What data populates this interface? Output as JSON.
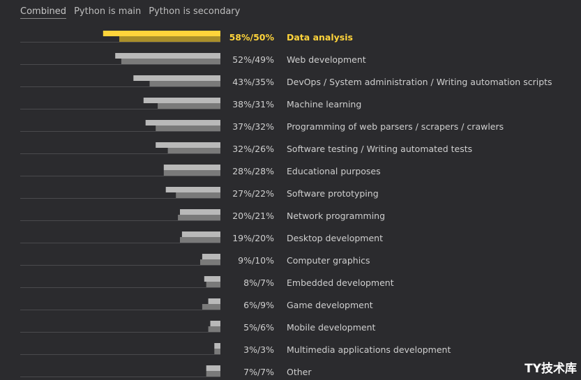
{
  "tabs": [
    {
      "label": "Combined",
      "active": true
    },
    {
      "label": "Python is main",
      "active": false
    },
    {
      "label": "Python is secondary",
      "active": false
    }
  ],
  "colors": {
    "background": "#2b2b2e",
    "bar_main": "#b9b9b9",
    "bar_secondary": "#7a7a7a",
    "highlight_main": "#ffd43b",
    "highlight_secondary": "#a98e2a",
    "baseline": "#4a4a4d"
  },
  "watermark": "TY技术库",
  "chart_data": {
    "type": "bar",
    "orientation": "horizontal",
    "highlight_index": 0,
    "series": [
      {
        "values": [
          58,
          52,
          43,
          38,
          37,
          32,
          28,
          27,
          20,
          19,
          9,
          8,
          6,
          5,
          3,
          7
        ]
      },
      {
        "values": [
          50,
          49,
          35,
          31,
          32,
          26,
          28,
          22,
          21,
          20,
          10,
          7,
          9,
          6,
          3,
          7
        ]
      }
    ],
    "value_labels": [
      "58%/50%",
      "52%/49%",
      "43%/35%",
      "38%/31%",
      "37%/32%",
      "32%/26%",
      "28%/28%",
      "27%/22%",
      "20%/21%",
      "19%/20%",
      "9%/10%",
      "8%/7%",
      "6%/9%",
      "5%/6%",
      "3%/3%",
      "7%/7%"
    ],
    "categories": [
      "Data analysis",
      "Web development",
      "DevOps / System administration / Writing automation scripts",
      "Machine learning",
      "Programming of web parsers / scrapers / crawlers",
      "Software testing / Writing automated tests",
      "Educational purposes",
      "Software prototyping",
      "Network programming",
      "Desktop development",
      "Computer graphics",
      "Embedded development",
      "Game development",
      "Mobile development",
      "Multimedia applications development",
      "Other"
    ]
  }
}
